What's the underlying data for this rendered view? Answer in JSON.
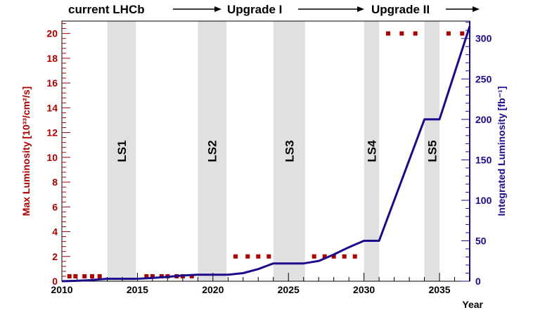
{
  "chart_data": {
    "type": "line",
    "header": {
      "phase1": "current LHCb",
      "phase2": "Upgrade I",
      "phase3": "Upgrade II"
    },
    "xlabel": "Year",
    "ylabel_left": "Max Luminosity [10³³/cm²/s]",
    "ylabel_right": "Integrated Luminosity [fb⁻¹]",
    "xlim": [
      2010,
      2037
    ],
    "ylim_left": [
      0,
      21
    ],
    "ylim_right": [
      0,
      321.5
    ],
    "x_ticks": [
      "2010",
      "2015",
      "2020",
      "2025",
      "2030",
      "2035"
    ],
    "y_ticks_left": [
      "0",
      "2",
      "4",
      "6",
      "8",
      "10",
      "12",
      "14",
      "16",
      "18",
      "20"
    ],
    "y_ticks_right": [
      "0",
      "50",
      "100",
      "150",
      "200",
      "250",
      "300"
    ],
    "shutdowns": [
      {
        "label": "LS1",
        "start": 2013.0,
        "end": 2014.9
      },
      {
        "label": "LS2",
        "start": 2019.0,
        "end": 2020.9
      },
      {
        "label": "LS3",
        "start": 2024.0,
        "end": 2026.1
      },
      {
        "label": "LS4",
        "start": 2030.0,
        "end": 2031.0
      },
      {
        "label": "LS5",
        "start": 2034.0,
        "end": 2035.0
      }
    ],
    "series": [
      {
        "axis": "left",
        "style": "dotted",
        "color": "#aa0000",
        "points": [
          [
            2010.5,
            0.4
          ],
          [
            2010.9,
            0.4
          ],
          [
            2011.5,
            0.4
          ],
          [
            2012.0,
            0.4
          ],
          [
            2012.5,
            0.4
          ],
          [
            2015.6,
            0.4
          ],
          [
            2016.0,
            0.4
          ],
          [
            2016.6,
            0.4
          ],
          [
            2017.0,
            0.4
          ],
          [
            2017.6,
            0.4
          ],
          [
            2018.0,
            0.4
          ],
          [
            2018.6,
            0.4
          ],
          [
            2021.5,
            2.0
          ],
          [
            2022.3,
            2.0
          ],
          [
            2023.0,
            2.0
          ],
          [
            2023.7,
            2.0
          ],
          [
            2026.7,
            2.0
          ],
          [
            2027.4,
            2.0
          ],
          [
            2028.0,
            2.0
          ],
          [
            2028.7,
            2.0
          ],
          [
            2029.4,
            2.0
          ],
          [
            2031.6,
            20.0
          ],
          [
            2032.5,
            20.0
          ],
          [
            2033.4,
            20.0
          ],
          [
            2035.6,
            20.0
          ],
          [
            2036.5,
            20.0
          ]
        ]
      },
      {
        "axis": "right",
        "style": "line",
        "color": "#1a0a8c",
        "points": [
          [
            2010,
            0
          ],
          [
            2011,
            0.5
          ],
          [
            2012,
            1.5
          ],
          [
            2013,
            3
          ],
          [
            2015,
            3
          ],
          [
            2016,
            4
          ],
          [
            2017,
            5.5
          ],
          [
            2018,
            7
          ],
          [
            2019,
            8
          ],
          [
            2021,
            8
          ],
          [
            2022,
            10
          ],
          [
            2023,
            15
          ],
          [
            2024,
            22
          ],
          [
            2026,
            22
          ],
          [
            2027,
            25
          ],
          [
            2028,
            33
          ],
          [
            2029,
            42
          ],
          [
            2030,
            50
          ],
          [
            2031,
            50
          ],
          [
            2034,
            200
          ],
          [
            2035,
            200
          ],
          [
            2037,
            315
          ]
        ]
      }
    ]
  }
}
